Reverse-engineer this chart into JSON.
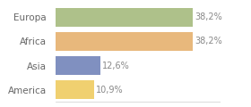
{
  "categories": [
    "Europa",
    "Africa",
    "Asia",
    "America"
  ],
  "values": [
    38.2,
    38.2,
    12.6,
    10.9
  ],
  "labels": [
    "38,2%",
    "38,2%",
    "12,6%",
    "10,9%"
  ],
  "bar_colors": [
    "#aec18a",
    "#e8b87c",
    "#8090c0",
    "#f0d070"
  ],
  "background_color": "#ffffff",
  "xlim": [
    0,
    46
  ],
  "bar_height": 0.78,
  "label_fontsize": 7,
  "category_fontsize": 7.5,
  "label_color": "#888888",
  "category_color": "#666666"
}
